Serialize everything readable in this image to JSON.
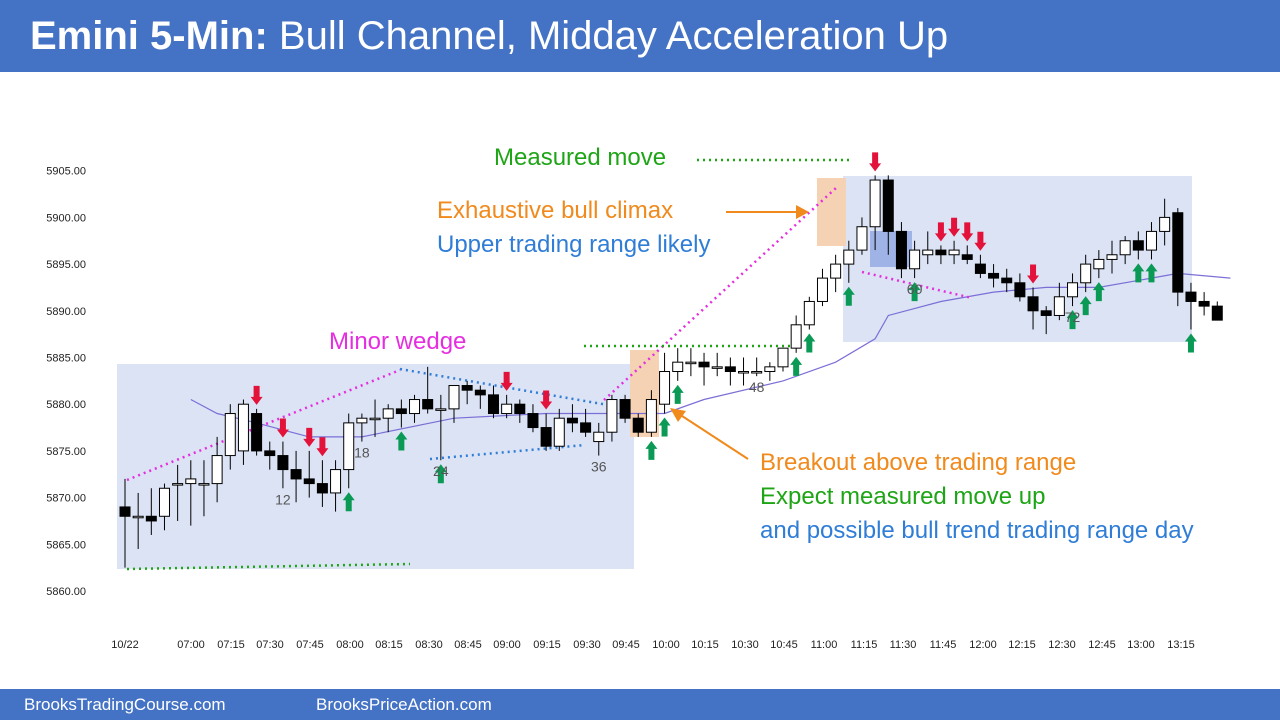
{
  "title": {
    "bold": "Emini 5-Min:",
    "rest": " Bull Channel, Midday Acceleration Up"
  },
  "footer": {
    "left": "BrooksTradingCourse.com",
    "right": "BrooksPriceAction.com"
  },
  "colors": {
    "header": "#4472c4",
    "box": "#dbe3f5",
    "bull_bar": "#ffffff",
    "bear_bar": "#000000",
    "ema": "#7b6fd6",
    "up_arrow": "#0b9a55",
    "down_arrow": "#e3123b",
    "magenta": "#e62ee0",
    "green": "#1ea516",
    "blue": "#2f7dd6",
    "orange": "#f08a1c",
    "highlight": "#f5d2b4"
  },
  "annotations": {
    "measured_move": "Measured move",
    "climax": "Exhaustive bull climax",
    "upper_range": "Upper trading range likely",
    "minor_wedge": "Minor wedge",
    "breakout": "Breakout above trading range",
    "expect": "Expect measured move up",
    "possible": "and possible bull trend trading range day"
  },
  "chart_data": {
    "type": "candlestick",
    "ylim": [
      5860,
      5905
    ],
    "yticks": [
      "5860.00",
      "5865.00",
      "5870.00",
      "5875.00",
      "5880.00",
      "5885.00",
      "5890.00",
      "5895.00",
      "5900.00",
      "5905.00"
    ],
    "xticks": [
      "10/22",
      "07:00",
      "07:15",
      "07:30",
      "07:45",
      "08:00",
      "08:15",
      "08:30",
      "08:45",
      "09:00",
      "09:15",
      "09:30",
      "09:45",
      "10:00",
      "10:15",
      "10:30",
      "10:45",
      "11:00",
      "11:15",
      "11:30",
      "11:45",
      "12:00",
      "12:15",
      "12:30",
      "12:45",
      "13:00",
      "13:15"
    ],
    "bar_labels": [
      {
        "bar": 12,
        "text": "12"
      },
      {
        "bar": 18,
        "text": "18"
      },
      {
        "bar": 24,
        "text": "24"
      },
      {
        "bar": 36,
        "text": "36"
      },
      {
        "bar": 48,
        "text": "48"
      },
      {
        "bar": 60,
        "text": "60"
      },
      {
        "bar": 72,
        "text": "72"
      }
    ],
    "bars": [
      {
        "o": 5869.0,
        "h": 5872.0,
        "l": 5862.5,
        "c": 5868.0
      },
      {
        "o": 5868.0,
        "h": 5870.5,
        "l": 5864.5,
        "c": 5868.0
      },
      {
        "o": 5868.0,
        "h": 5871.0,
        "l": 5866.0,
        "c": 5867.5
      },
      {
        "o": 5868.0,
        "h": 5871.5,
        "l": 5866.5,
        "c": 5871.0
      },
      {
        "o": 5871.5,
        "h": 5873.5,
        "l": 5867.5,
        "c": 5871.5
      },
      {
        "o": 5871.5,
        "h": 5874.0,
        "l": 5867.0,
        "c": 5872.0
      },
      {
        "o": 5871.5,
        "h": 5874.0,
        "l": 5868.0,
        "c": 5871.5
      },
      {
        "o": 5871.5,
        "h": 5876.5,
        "l": 5869.5,
        "c": 5874.5
      },
      {
        "o": 5874.5,
        "h": 5880.0,
        "l": 5873.0,
        "c": 5879.0
      },
      {
        "o": 5875.0,
        "h": 5880.5,
        "l": 5873.5,
        "c": 5880.0
      },
      {
        "o": 5879.0,
        "h": 5879.5,
        "l": 5874.5,
        "c": 5875.0
      },
      {
        "o": 5875.0,
        "h": 5876.0,
        "l": 5873.0,
        "c": 5874.5
      },
      {
        "o": 5874.5,
        "h": 5876.0,
        "l": 5871.0,
        "c": 5873.0
      },
      {
        "o": 5873.0,
        "h": 5875.0,
        "l": 5869.5,
        "c": 5872.0
      },
      {
        "o": 5872.0,
        "h": 5875.0,
        "l": 5870.0,
        "c": 5871.5
      },
      {
        "o": 5871.5,
        "h": 5874.0,
        "l": 5869.0,
        "c": 5870.5
      },
      {
        "o": 5870.5,
        "h": 5874.0,
        "l": 5868.5,
        "c": 5873.0
      },
      {
        "o": 5873.0,
        "h": 5879.0,
        "l": 5871.0,
        "c": 5878.0
      },
      {
        "o": 5878.0,
        "h": 5879.0,
        "l": 5876.0,
        "c": 5878.5
      },
      {
        "o": 5878.5,
        "h": 5880.5,
        "l": 5876.5,
        "c": 5878.5
      },
      {
        "o": 5878.5,
        "h": 5880.0,
        "l": 5877.0,
        "c": 5879.5
      },
      {
        "o": 5879.5,
        "h": 5880.5,
        "l": 5877.5,
        "c": 5879.0
      },
      {
        "o": 5879.0,
        "h": 5881.0,
        "l": 5878.0,
        "c": 5880.5
      },
      {
        "o": 5880.5,
        "h": 5884.0,
        "l": 5879.0,
        "c": 5879.5
      },
      {
        "o": 5879.5,
        "h": 5881.0,
        "l": 5874.0,
        "c": 5879.5
      },
      {
        "o": 5879.5,
        "h": 5882.0,
        "l": 5878.0,
        "c": 5882.0
      },
      {
        "o": 5882.0,
        "h": 5882.5,
        "l": 5880.0,
        "c": 5881.5
      },
      {
        "o": 5881.5,
        "h": 5882.0,
        "l": 5879.5,
        "c": 5881.0
      },
      {
        "o": 5881.0,
        "h": 5882.0,
        "l": 5878.5,
        "c": 5879.0
      },
      {
        "o": 5879.0,
        "h": 5881.0,
        "l": 5878.5,
        "c": 5880.0
      },
      {
        "o": 5880.0,
        "h": 5880.5,
        "l": 5878.0,
        "c": 5879.0
      },
      {
        "o": 5879.0,
        "h": 5880.0,
        "l": 5877.0,
        "c": 5877.5
      },
      {
        "o": 5877.5,
        "h": 5879.0,
        "l": 5875.0,
        "c": 5875.5
      },
      {
        "o": 5875.5,
        "h": 5879.5,
        "l": 5875.0,
        "c": 5878.5
      },
      {
        "o": 5878.5,
        "h": 5880.0,
        "l": 5877.0,
        "c": 5878.0
      },
      {
        "o": 5878.0,
        "h": 5879.5,
        "l": 5876.5,
        "c": 5877.0
      },
      {
        "o": 5876.0,
        "h": 5878.0,
        "l": 5874.5,
        "c": 5877.0
      },
      {
        "o": 5877.0,
        "h": 5881.0,
        "l": 5876.0,
        "c": 5880.5
      },
      {
        "o": 5880.5,
        "h": 5881.0,
        "l": 5878.0,
        "c": 5878.5
      },
      {
        "o": 5878.5,
        "h": 5879.0,
        "l": 5876.5,
        "c": 5877.0
      },
      {
        "o": 5877.0,
        "h": 5881.5,
        "l": 5876.5,
        "c": 5880.5
      },
      {
        "o": 5880.0,
        "h": 5885.5,
        "l": 5879.0,
        "c": 5883.5
      },
      {
        "o": 5883.5,
        "h": 5886.0,
        "l": 5882.5,
        "c": 5884.5
      },
      {
        "o": 5884.5,
        "h": 5886.0,
        "l": 5883.0,
        "c": 5884.5
      },
      {
        "o": 5884.5,
        "h": 5885.5,
        "l": 5882.0,
        "c": 5884.0
      },
      {
        "o": 5884.0,
        "h": 5885.5,
        "l": 5883.0,
        "c": 5884.0
      },
      {
        "o": 5884.0,
        "h": 5885.0,
        "l": 5882.0,
        "c": 5883.5
      },
      {
        "o": 5883.5,
        "h": 5885.0,
        "l": 5882.0,
        "c": 5883.5
      },
      {
        "o": 5883.5,
        "h": 5885.0,
        "l": 5883.0,
        "c": 5883.5
      },
      {
        "o": 5883.5,
        "h": 5884.5,
        "l": 5882.5,
        "c": 5884.0
      },
      {
        "o": 5884.0,
        "h": 5886.0,
        "l": 5883.5,
        "c": 5886.0
      },
      {
        "o": 5886.0,
        "h": 5889.5,
        "l": 5885.5,
        "c": 5888.5
      },
      {
        "o": 5888.5,
        "h": 5891.5,
        "l": 5888.0,
        "c": 5891.0
      },
      {
        "o": 5891.0,
        "h": 5894.5,
        "l": 5890.5,
        "c": 5893.5
      },
      {
        "o": 5893.5,
        "h": 5896.0,
        "l": 5892.0,
        "c": 5895.0
      },
      {
        "o": 5895.0,
        "h": 5897.5,
        "l": 5893.0,
        "c": 5896.5
      },
      {
        "o": 5896.5,
        "h": 5900.0,
        "l": 5896.0,
        "c": 5899.0
      },
      {
        "o": 5899.0,
        "h": 5904.5,
        "l": 5896.5,
        "c": 5904.0
      },
      {
        "o": 5904.0,
        "h": 5904.5,
        "l": 5896.0,
        "c": 5898.5
      },
      {
        "o": 5898.5,
        "h": 5899.5,
        "l": 5893.5,
        "c": 5894.5
      },
      {
        "o": 5894.5,
        "h": 5897.5,
        "l": 5893.5,
        "c": 5896.5
      },
      {
        "o": 5896.0,
        "h": 5898.5,
        "l": 5895.0,
        "c": 5896.5
      },
      {
        "o": 5896.5,
        "h": 5897.0,
        "l": 5895.0,
        "c": 5896.0
      },
      {
        "o": 5896.0,
        "h": 5897.5,
        "l": 5895.0,
        "c": 5896.5
      },
      {
        "o": 5896.0,
        "h": 5897.0,
        "l": 5895.0,
        "c": 5895.5
      },
      {
        "o": 5895.0,
        "h": 5896.0,
        "l": 5893.5,
        "c": 5894.0
      },
      {
        "o": 5894.0,
        "h": 5895.0,
        "l": 5892.5,
        "c": 5893.5
      },
      {
        "o": 5893.5,
        "h": 5894.5,
        "l": 5892.0,
        "c": 5893.0
      },
      {
        "o": 5893.0,
        "h": 5894.0,
        "l": 5891.0,
        "c": 5891.5
      },
      {
        "o": 5891.5,
        "h": 5892.5,
        "l": 5888.0,
        "c": 5890.0
      },
      {
        "o": 5890.0,
        "h": 5890.5,
        "l": 5887.5,
        "c": 5889.5
      },
      {
        "o": 5889.5,
        "h": 5893.0,
        "l": 5889.0,
        "c": 5891.5
      },
      {
        "o": 5891.5,
        "h": 5894.0,
        "l": 5890.5,
        "c": 5893.0
      },
      {
        "o": 5893.0,
        "h": 5896.0,
        "l": 5892.0,
        "c": 5895.0
      },
      {
        "o": 5894.5,
        "h": 5896.5,
        "l": 5893.5,
        "c": 5895.5
      },
      {
        "o": 5895.5,
        "h": 5897.5,
        "l": 5894.0,
        "c": 5896.0
      },
      {
        "o": 5896.0,
        "h": 5898.0,
        "l": 5895.0,
        "c": 5897.5
      },
      {
        "o": 5897.5,
        "h": 5898.5,
        "l": 5895.5,
        "c": 5896.5
      },
      {
        "o": 5896.5,
        "h": 5899.5,
        "l": 5895.5,
        "c": 5898.5
      },
      {
        "o": 5898.5,
        "h": 5902.0,
        "l": 5897.0,
        "c": 5900.0
      },
      {
        "o": 5900.5,
        "h": 5901.0,
        "l": 5890.5,
        "c": 5892.0
      },
      {
        "o": 5892.0,
        "h": 5893.0,
        "l": 5888.0,
        "c": 5891.0
      },
      {
        "o": 5891.0,
        "h": 5892.0,
        "l": 5889.5,
        "c": 5890.5
      },
      {
        "o": 5890.5,
        "h": 5891.0,
        "l": 5889.0,
        "c": 5889.0
      }
    ],
    "ema": [
      [
        5,
        5880.5
      ],
      [
        7,
        5879.0
      ],
      [
        10,
        5878.0
      ],
      [
        14,
        5876.5
      ],
      [
        18,
        5876.5
      ],
      [
        25,
        5878.5
      ],
      [
        32,
        5879.0
      ],
      [
        37,
        5879.0
      ],
      [
        41,
        5879.0
      ],
      [
        44,
        5880.5
      ],
      [
        50,
        5882.5
      ],
      [
        54,
        5884.5
      ],
      [
        57,
        5887.0
      ],
      [
        58,
        5889.5
      ],
      [
        62,
        5891.0
      ],
      [
        66,
        5892.0
      ],
      [
        70,
        5892.5
      ],
      [
        74,
        5892.5
      ],
      [
        78,
        5893.5
      ],
      [
        80,
        5894.0
      ],
      [
        84,
        5893.5
      ]
    ],
    "up_arrow_bars": [
      17,
      21,
      24,
      40,
      41,
      42,
      51,
      52,
      55,
      60,
      72,
      73,
      74,
      77,
      78,
      81
    ],
    "down_arrow_bars": [
      10,
      12,
      14,
      15,
      29,
      32,
      57,
      62,
      63,
      64,
      65,
      69
    ]
  }
}
